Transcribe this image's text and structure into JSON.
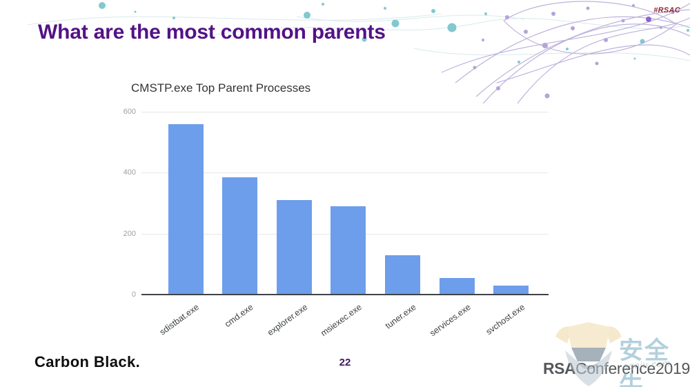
{
  "page": {
    "hashtag": "#RSAC",
    "title": "What are the most common parents",
    "page_number": "22"
  },
  "footer": {
    "brand": "Carbon Black.",
    "conference_rsa": "RSA",
    "conference_rest": "Conference2019"
  },
  "watermark": {
    "cn_text": "安全牛",
    "domain": "aqniu.com"
  },
  "colors": {
    "title_purple": "#521287",
    "hashtag_red": "#8e2433",
    "bar_blue": "#6d9eeb",
    "axis_gray": "#3f4245",
    "tick_gray": "#9aa0a6",
    "deco_teal": "#82c8ce",
    "deco_purple": "#b4a4d9"
  },
  "chart_data": {
    "type": "bar",
    "title": "CMSTP.exe Top Parent Processes",
    "categories": [
      "sdistbat.exe",
      "cmd.exe",
      "explorer.exe",
      "msiexec.exe",
      "tuner.exe",
      "services.exe",
      "svchost.exe"
    ],
    "values": [
      560,
      385,
      310,
      290,
      130,
      55,
      30
    ],
    "xlabel": "",
    "ylabel": "",
    "ylim": [
      0,
      600
    ],
    "yticks": [
      0,
      200,
      400,
      600
    ],
    "grid": true,
    "legend": "none",
    "bar_color": "#6d9eeb"
  }
}
